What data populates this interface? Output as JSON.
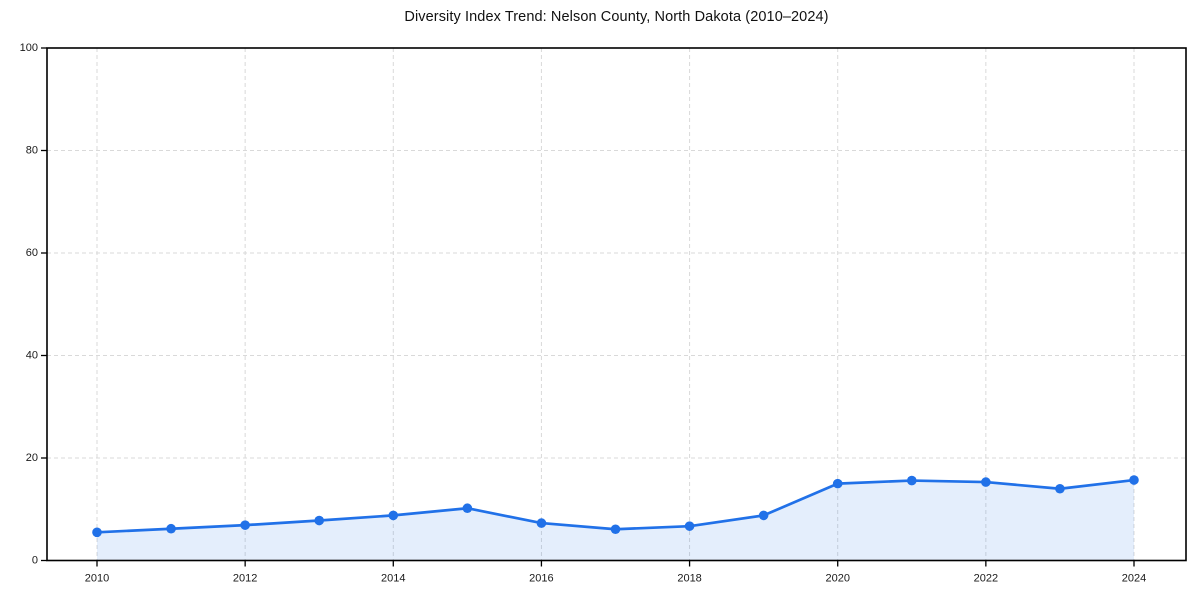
{
  "chart_data": {
    "type": "line",
    "title": "Diversity Index Trend: Nelson County, North Dakota (2010–2024)",
    "x": [
      2010,
      2011,
      2012,
      2013,
      2014,
      2015,
      2016,
      2017,
      2018,
      2019,
      2020,
      2021,
      2022,
      2023,
      2024
    ],
    "series": [
      {
        "name": "Diversity Index",
        "values": [
          5.5,
          6.2,
          6.9,
          7.8,
          8.8,
          10.2,
          7.3,
          6.1,
          6.7,
          8.8,
          15.0,
          15.6,
          15.3,
          14.0,
          15.7
        ]
      }
    ],
    "xlabel": "",
    "ylabel": "",
    "ylim": [
      0,
      100
    ],
    "y_ticks": [
      0,
      20,
      40,
      60,
      80,
      100
    ],
    "x_ticks": [
      2010,
      2012,
      2014,
      2016,
      2018,
      2020,
      2022,
      2024
    ],
    "grid": "dashed-both-axes",
    "legend": "none",
    "area_fill": true,
    "marker": "circle",
    "colors": {
      "line": "#2171e8",
      "marker": "#2171e8",
      "fill": "#2171e8",
      "fill_opacity": 0.12,
      "grid": "#d9d9d9",
      "spine": "#000000",
      "tick_label": "#1a1a1a",
      "title": "#111111",
      "background": "#ffffff"
    }
  }
}
